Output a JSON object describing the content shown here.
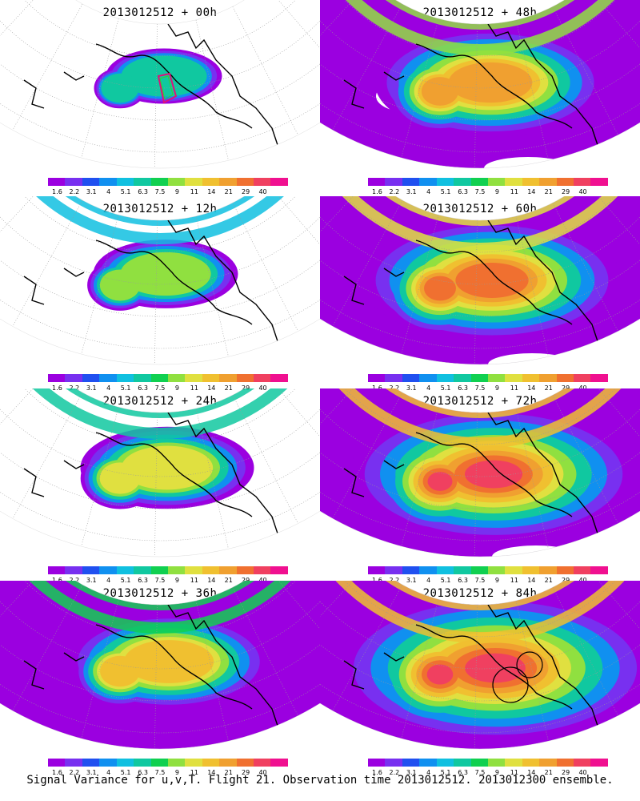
{
  "panels": [
    {
      "title": "2013012512 + 00h",
      "lead": "00h",
      "level": 0
    },
    {
      "title": "2013012512 + 48h",
      "lead": "48h",
      "level": 4
    },
    {
      "title": "2013012512 + 12h",
      "lead": "12h",
      "level": 1
    },
    {
      "title": "2013012512 + 60h",
      "lead": "60h",
      "level": 5
    },
    {
      "title": "2013012512 + 24h",
      "lead": "24h",
      "level": 2
    },
    {
      "title": "2013012512 + 72h",
      "lead": "72h",
      "level": 6
    },
    {
      "title": "2013012512 + 36h",
      "lead": "36h",
      "level": 3
    },
    {
      "title": "2013012512 + 84h",
      "lead": "84h",
      "level": 7
    }
  ],
  "colorbar": {
    "labels": [
      "1.6",
      "2.2",
      "3.1",
      "4",
      "5.1",
      "6.3",
      "7.5",
      "9",
      "11",
      "14",
      "21",
      "29",
      "40"
    ],
    "colors": [
      "#9b00e0",
      "#7830f0",
      "#2050f0",
      "#1090f0",
      "#10c0e0",
      "#10c8a0",
      "#10d050",
      "#90e040",
      "#e0e040",
      "#f0c030",
      "#f0a030",
      "#f07030",
      "#f04060",
      "#f01090"
    ]
  },
  "footer": "Signal Variance for u,v,T. Flight 21. Observation time 2013012512. 2013012300 ensemble."
}
